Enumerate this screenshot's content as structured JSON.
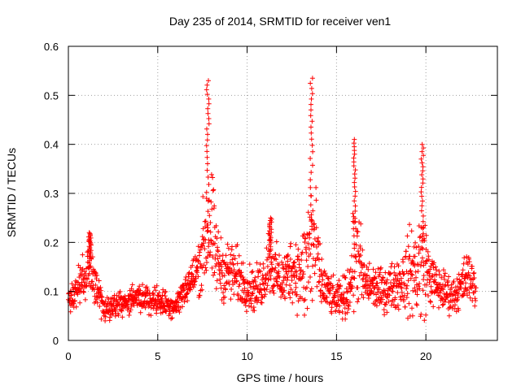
{
  "chart_data": {
    "type": "scatter",
    "title": "Day 235 of 2014, SRMTID for receiver ven1",
    "xlabel": "GPS time / hours",
    "ylabel": "SRMTID / TECUs",
    "xlim": [
      0,
      24
    ],
    "ylim": [
      0,
      0.6
    ],
    "x_ticks": [
      0,
      5,
      10,
      15,
      20
    ],
    "x_tick_labels": [
      "0",
      "5",
      "10",
      "15",
      "20"
    ],
    "y_ticks": [
      0,
      0.1,
      0.2,
      0.3,
      0.4,
      0.5,
      0.6
    ],
    "y_tick_labels": [
      "0",
      "0.1",
      "0.2",
      "0.3",
      "0.4",
      "0.5",
      "0.6"
    ],
    "grid": true,
    "marker": "+",
    "series": [
      {
        "name": "SRMTID",
        "color": "#ff0000",
        "profile": {
          "description": "approximate envelope of dense scatter; times in hours, values in TECU",
          "times": [
            0.0,
            0.3,
            0.6,
            0.9,
            1.1,
            1.3,
            1.6,
            2.0,
            2.5,
            3.0,
            3.5,
            4.0,
            4.5,
            5.0,
            5.5,
            6.0,
            6.3,
            6.6,
            7.0,
            7.3,
            7.5,
            7.7,
            7.9,
            8.1,
            8.3,
            8.6,
            9.0,
            9.5,
            10.0,
            10.5,
            11.0,
            11.2,
            11.5,
            12.0,
            12.5,
            13.0,
            13.3,
            13.5,
            13.7,
            13.9,
            14.1,
            14.5,
            15.0,
            15.5,
            15.8,
            16.0,
            16.2,
            16.5,
            17.0,
            17.5,
            18.0,
            18.5,
            18.9,
            19.2,
            19.5,
            19.7,
            19.9,
            20.2,
            20.6,
            21.0,
            21.5,
            22.0,
            22.3,
            22.6,
            22.8
          ],
          "center": [
            0.075,
            0.09,
            0.11,
            0.13,
            0.15,
            0.15,
            0.1,
            0.07,
            0.07,
            0.075,
            0.08,
            0.085,
            0.085,
            0.08,
            0.075,
            0.07,
            0.09,
            0.11,
            0.13,
            0.15,
            0.18,
            0.22,
            0.24,
            0.2,
            0.17,
            0.14,
            0.14,
            0.13,
            0.11,
            0.1,
            0.13,
            0.17,
            0.14,
            0.12,
            0.15,
            0.13,
            0.15,
            0.19,
            0.2,
            0.17,
            0.12,
            0.1,
            0.08,
            0.09,
            0.12,
            0.17,
            0.18,
            0.12,
            0.11,
            0.1,
            0.11,
            0.12,
            0.13,
            0.14,
            0.14,
            0.16,
            0.16,
            0.13,
            0.11,
            0.1,
            0.09,
            0.11,
            0.13,
            0.12,
            0.1
          ],
          "spread": [
            0.02,
            0.03,
            0.04,
            0.04,
            0.05,
            0.05,
            0.04,
            0.025,
            0.025,
            0.025,
            0.025,
            0.025,
            0.025,
            0.025,
            0.025,
            0.02,
            0.03,
            0.03,
            0.04,
            0.05,
            0.08,
            0.12,
            0.13,
            0.1,
            0.07,
            0.05,
            0.06,
            0.05,
            0.04,
            0.04,
            0.05,
            0.06,
            0.05,
            0.05,
            0.06,
            0.07,
            0.12,
            0.15,
            0.16,
            0.1,
            0.05,
            0.04,
            0.03,
            0.04,
            0.06,
            0.1,
            0.1,
            0.05,
            0.04,
            0.04,
            0.04,
            0.05,
            0.07,
            0.08,
            0.1,
            0.12,
            0.1,
            0.05,
            0.04,
            0.04,
            0.03,
            0.04,
            0.05,
            0.04,
            0.03
          ],
          "peaks": [
            {
              "t": 7.8,
              "value": 0.53
            },
            {
              "t": 13.6,
              "value": 0.535
            },
            {
              "t": 16.0,
              "value": 0.41
            },
            {
              "t": 19.8,
              "value": 0.4
            },
            {
              "t": 1.2,
              "value": 0.22
            },
            {
              "t": 11.3,
              "value": 0.25
            }
          ],
          "min": 0.02,
          "count": 1700
        }
      }
    ]
  }
}
